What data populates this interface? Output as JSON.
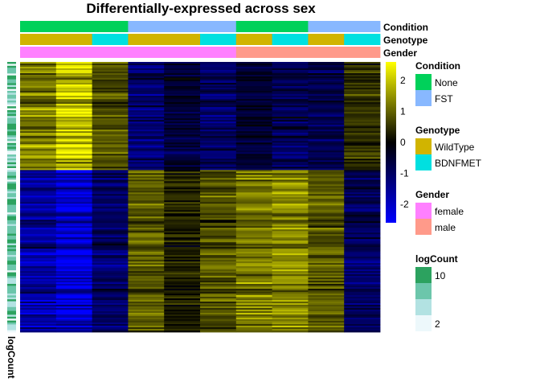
{
  "chart_data": {
    "type": "heatmap",
    "title": "Differentially-expressed across sex",
    "annotation_tracks": [
      {
        "name": "Condition",
        "values": [
          "None",
          "None",
          "None",
          "FST",
          "FST",
          "FST",
          "None",
          "None",
          "FST",
          "FST"
        ]
      },
      {
        "name": "Genotype",
        "values": [
          "WildType",
          "WildType",
          "BDNFMET",
          "WildType",
          "WildType",
          "BDNFMET",
          "WildType",
          "BDNFMET",
          "WildType",
          "BDNFMET"
        ]
      },
      {
        "name": "Gender",
        "values": [
          "female",
          "female",
          "female",
          "female",
          "female",
          "female",
          "male",
          "male",
          "male",
          "male"
        ]
      }
    ],
    "row_annotation": {
      "name": "logCount"
    },
    "color_scale": {
      "ticks": [
        2,
        1,
        0,
        -1,
        -2
      ],
      "range": [
        -2.6,
        2.6
      ],
      "low": "#0000ff",
      "mid": "#000000",
      "high": "#ffff00"
    },
    "row_clusters": [
      {
        "fraction": 0.4,
        "column_means": [
          1.3,
          2.1,
          0.8,
          -1.2,
          -0.6,
          -1.0,
          -0.5,
          -0.9,
          -0.8,
          0.5
        ]
      },
      {
        "fraction": 0.6,
        "column_means": [
          -1.6,
          -2.2,
          -1.0,
          0.9,
          0.3,
          0.8,
          1.2,
          1.4,
          0.9,
          -0.9
        ]
      }
    ],
    "legends": [
      {
        "title": "Condition",
        "entries": [
          {
            "label": "None",
            "color": "#00d15a"
          },
          {
            "label": "FST",
            "color": "#88b8ff"
          }
        ]
      },
      {
        "title": "Genotype",
        "entries": [
          {
            "label": "WildType",
            "color": "#d1b400"
          },
          {
            "label": "BDNFMET",
            "color": "#00e0e0"
          }
        ]
      },
      {
        "title": "Gender",
        "entries": [
          {
            "label": "female",
            "color": "#ff80ff"
          },
          {
            "label": "male",
            "color": "#ff9a8a"
          }
        ]
      },
      {
        "title": "logCount",
        "entries": [
          {
            "label": "10",
            "color": "#2ca25f"
          },
          {
            "label": "",
            "color": "#6cc6ab"
          },
          {
            "label": "",
            "color": "#b2e2e2"
          },
          {
            "label": "2",
            "color": "#edf8fb"
          }
        ]
      }
    ]
  }
}
